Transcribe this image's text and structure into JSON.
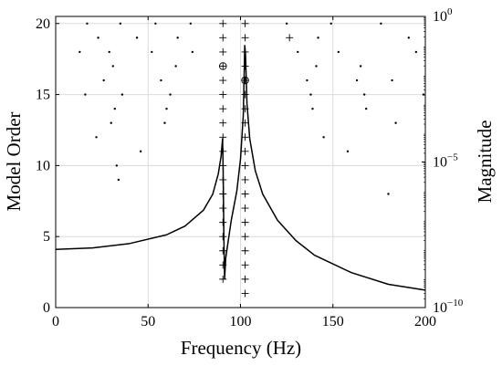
{
  "chart_data": {
    "type": "scatter",
    "title": "",
    "xlabel": "Frequency (Hz)",
    "ylabel_left": "Model Order",
    "ylabel_right": "Magnitude",
    "xlim": [
      0,
      200
    ],
    "ylim_left": [
      0,
      20.5
    ],
    "ylim_right_exponent": [
      -10,
      0
    ],
    "y_right_scale": "log",
    "grid": true,
    "x_ticks": [
      0,
      50,
      100,
      150,
      200
    ],
    "x_tick_labels": [
      "0",
      "50",
      "100",
      "150",
      "200"
    ],
    "y_left_ticks": [
      0,
      5,
      10,
      15,
      20
    ],
    "y_left_tick_labels": [
      "0",
      "5",
      "10",
      "15",
      "20"
    ],
    "y_right_ticks": [
      {
        "exp": 0,
        "base": "10",
        "sup": "0"
      },
      {
        "exp": -5,
        "base": "10",
        "sup": "−5"
      },
      {
        "exp": -10,
        "base": "10",
        "sup": "−10"
      }
    ],
    "series": [
      {
        "marker": "dot",
        "points": [
          [
            13,
            18
          ],
          [
            16,
            15
          ],
          [
            17,
            20
          ],
          [
            22,
            12
          ],
          [
            23,
            19
          ],
          [
            26,
            16
          ],
          [
            29,
            18
          ],
          [
            30,
            13
          ],
          [
            31,
            17
          ],
          [
            32,
            14
          ],
          [
            33,
            10
          ],
          [
            34,
            9
          ],
          [
            35,
            20
          ],
          [
            36,
            15
          ],
          [
            44,
            19
          ],
          [
            46,
            11
          ],
          [
            52,
            18
          ],
          [
            54,
            20
          ],
          [
            57,
            16
          ],
          [
            59,
            13
          ],
          [
            60,
            14
          ],
          [
            62,
            15
          ],
          [
            65,
            17
          ],
          [
            66,
            19
          ],
          [
            73,
            20
          ],
          [
            74,
            18
          ],
          [
            125,
            20
          ],
          [
            131,
            18
          ],
          [
            136,
            16
          ],
          [
            138,
            15
          ],
          [
            139,
            14
          ],
          [
            141,
            17
          ],
          [
            142,
            19
          ],
          [
            145,
            12
          ],
          [
            149,
            20
          ],
          [
            153,
            18
          ],
          [
            158,
            11
          ],
          [
            163,
            16
          ],
          [
            165,
            17
          ],
          [
            167,
            15
          ],
          [
            168,
            14
          ],
          [
            176,
            20
          ],
          [
            180,
            8
          ],
          [
            182,
            16
          ],
          [
            184,
            13
          ],
          [
            191,
            19
          ],
          [
            195,
            18
          ],
          [
            199,
            15
          ]
        ]
      },
      {
        "marker": "plus",
        "points": [
          [
            90.5,
            2
          ],
          [
            90.5,
            3
          ],
          [
            90.5,
            4
          ],
          [
            90.5,
            5
          ],
          [
            90.5,
            6
          ],
          [
            90.5,
            7
          ],
          [
            90.5,
            8
          ],
          [
            90.5,
            9
          ],
          [
            90.5,
            10
          ],
          [
            90.5,
            11
          ],
          [
            90.5,
            12
          ],
          [
            90.5,
            13
          ],
          [
            90.5,
            14
          ],
          [
            90.5,
            15
          ],
          [
            90.5,
            16
          ],
          [
            90.5,
            18
          ],
          [
            90.5,
            19
          ],
          [
            90.5,
            20
          ],
          [
            102.5,
            1
          ],
          [
            102.5,
            2
          ],
          [
            102.5,
            3
          ],
          [
            102.5,
            4
          ],
          [
            102.5,
            5
          ],
          [
            102.5,
            6
          ],
          [
            102.5,
            7
          ],
          [
            102.5,
            8
          ],
          [
            102.5,
            9
          ],
          [
            102.5,
            10
          ],
          [
            102.5,
            11
          ],
          [
            102.5,
            12
          ],
          [
            102.5,
            13
          ],
          [
            102.5,
            14
          ],
          [
            102.5,
            15
          ],
          [
            102.5,
            17
          ],
          [
            102.5,
            18
          ],
          [
            102.5,
            19
          ],
          [
            102.5,
            20
          ],
          [
            126.5,
            19
          ]
        ]
      },
      {
        "marker": "circled-plus",
        "points": [
          [
            90.5,
            17
          ],
          [
            102.5,
            16
          ]
        ]
      },
      {
        "marker": "line",
        "y_axis": "right-log",
        "points": [
          [
            0,
            -8.0
          ],
          [
            20,
            -7.95
          ],
          [
            40,
            -7.8
          ],
          [
            60,
            -7.5
          ],
          [
            70,
            -7.2
          ],
          [
            80,
            -6.65
          ],
          [
            85,
            -6.1
          ],
          [
            88,
            -5.4
          ],
          [
            89.5,
            -4.8
          ],
          [
            90.3,
            -4.2
          ],
          [
            90.6,
            -5.2
          ],
          [
            91.0,
            -7.6
          ],
          [
            91.4,
            -9.0
          ],
          [
            92.0,
            -8.3
          ],
          [
            95,
            -7.0
          ],
          [
            98,
            -6.0
          ],
          [
            100,
            -4.9
          ],
          [
            101.5,
            -3.4
          ],
          [
            102.3,
            -1.0
          ],
          [
            102.7,
            -1.3
          ],
          [
            103.5,
            -3.0
          ],
          [
            105,
            -4.2
          ],
          [
            108,
            -5.3
          ],
          [
            112,
            -6.1
          ],
          [
            120,
            -7.0
          ],
          [
            130,
            -7.7
          ],
          [
            140,
            -8.2
          ],
          [
            160,
            -8.8
          ],
          [
            180,
            -9.2
          ],
          [
            200,
            -9.4
          ]
        ]
      }
    ]
  }
}
